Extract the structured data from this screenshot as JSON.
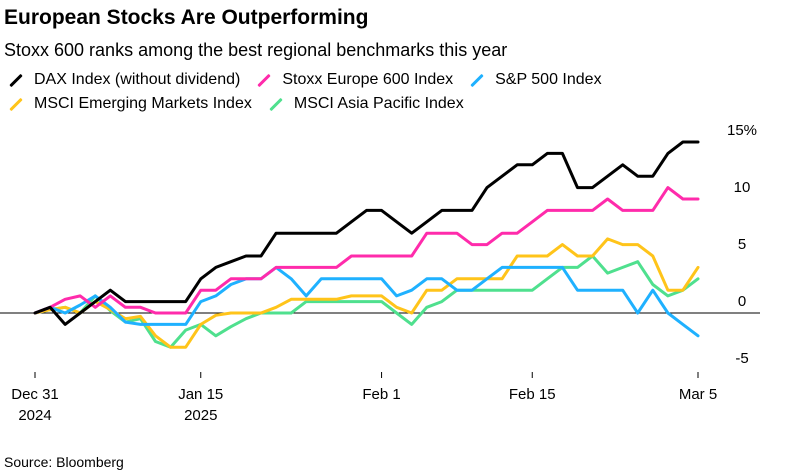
{
  "title": "European Stocks Are Outperforming",
  "subtitle": "Stoxx 600 ranks among the best regional benchmarks this year",
  "source": "Source: Bloomberg",
  "chart_data": {
    "type": "line",
    "title": "European Stocks Are Outperforming",
    "subtitle": "Stoxx 600 ranks among the best regional benchmarks this year",
    "xlabel": "",
    "ylabel": "%",
    "x_index_range": [
      0,
      44
    ],
    "ylim": [
      -6,
      16
    ],
    "y_ticks": [
      15,
      10,
      5,
      0,
      -5
    ],
    "y_tick_labels": [
      "15%",
      "10",
      "5",
      "0",
      "-5"
    ],
    "x_ticks": [
      {
        "index": 0,
        "label_line1": "Dec 31",
        "label_line2": "2024"
      },
      {
        "index": 11,
        "label_line1": "Jan 15",
        "label_line2": "2025"
      },
      {
        "index": 23,
        "label_line1": "Feb 1",
        "label_line2": ""
      },
      {
        "index": 33,
        "label_line1": "Feb 15",
        "label_line2": ""
      },
      {
        "index": 44,
        "label_line1": "Mar 5",
        "label_line2": ""
      }
    ],
    "series": [
      {
        "name": "MSCI Asia Pacific Index",
        "color": "#4fe08e",
        "values": [
          0,
          0.3,
          0.5,
          0,
          1.5,
          0.2,
          -0.8,
          -0.5,
          -2.5,
          -3,
          -1.5,
          -1,
          -2,
          -1.2,
          -0.5,
          0,
          0,
          0,
          1,
          1,
          1,
          1,
          1,
          1,
          0,
          -1,
          0.5,
          1,
          2,
          2,
          2,
          2,
          2,
          2,
          3,
          4,
          4,
          5,
          3.5,
          4,
          4.5,
          2.5,
          1.5,
          2,
          3
        ]
      },
      {
        "name": "MSCI Emerging Markets Index",
        "color": "#ffc41a",
        "values": [
          0,
          0.3,
          0.5,
          0,
          1,
          0.3,
          -0.5,
          -0.3,
          -2,
          -3,
          -3,
          -1,
          -0.2,
          0,
          0,
          0,
          0.5,
          1.2,
          1.2,
          1.2,
          1.2,
          1.5,
          1.5,
          1.5,
          0.5,
          0,
          2,
          2,
          3,
          3,
          3,
          3,
          5,
          5,
          5,
          6,
          5,
          5,
          6.5,
          6,
          6,
          5,
          2,
          2,
          4
        ]
      },
      {
        "name": "S&P 500 Index",
        "color": "#1fb1ff",
        "values": [
          0,
          0.5,
          0,
          0.7,
          1.5,
          0.5,
          -0.8,
          -1,
          -1,
          -1,
          -1,
          1,
          1.5,
          2.5,
          3,
          3,
          4,
          3,
          1.5,
          3,
          3,
          3,
          3,
          3,
          1.5,
          2,
          3,
          3,
          2,
          2,
          3,
          4,
          4,
          4,
          4,
          4,
          2,
          2,
          2,
          2,
          0,
          2,
          0,
          -1,
          -2
        ]
      },
      {
        "name": "Stoxx Europe 600 Index",
        "color": "#ff2bab",
        "values": [
          0,
          0.5,
          1.2,
          1.5,
          0.5,
          1.5,
          0.5,
          0.5,
          0,
          0,
          0,
          2,
          2,
          3,
          3,
          3,
          4,
          4,
          4,
          4,
          4,
          5,
          5,
          5,
          5,
          5,
          7,
          7,
          7,
          6,
          6,
          7,
          7,
          8,
          9,
          9,
          9,
          9,
          10,
          9,
          9,
          9,
          11,
          10,
          10
        ]
      },
      {
        "name": "DAX Index (without dividend)",
        "color": "#000000",
        "values": [
          0,
          0.5,
          -1,
          0,
          1,
          2,
          1,
          1,
          1,
          1,
          1,
          3,
          4,
          4.5,
          5,
          5,
          7,
          7,
          7,
          7,
          7,
          8,
          9,
          9,
          8,
          7,
          8,
          9,
          9,
          9,
          11,
          12,
          13,
          13,
          14,
          14,
          11,
          11,
          12,
          13,
          12,
          12,
          14,
          15,
          15
        ]
      }
    ],
    "legend": [
      {
        "label": "DAX Index (without dividend)",
        "color": "#000000"
      },
      {
        "label": "Stoxx Europe 600 Index",
        "color": "#ff2bab"
      },
      {
        "label": "S&P 500 Index",
        "color": "#1fb1ff"
      },
      {
        "label": "MSCI Emerging Markets Index",
        "color": "#ffc41a"
      },
      {
        "label": "MSCI Asia Pacific Index",
        "color": "#4fe08e"
      }
    ],
    "legend_position": "top-left"
  }
}
